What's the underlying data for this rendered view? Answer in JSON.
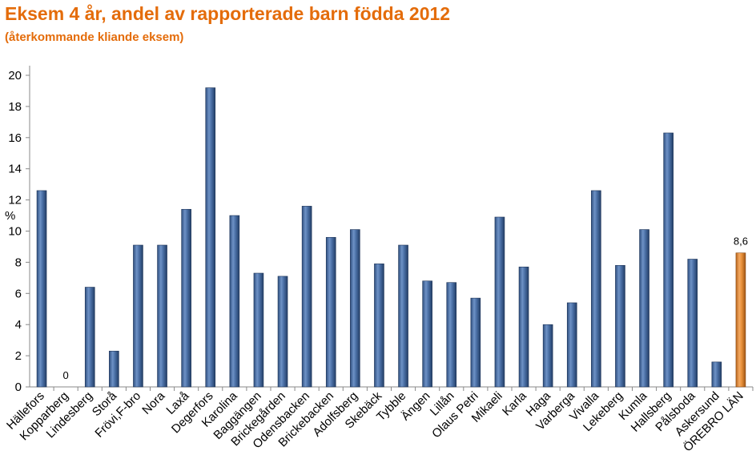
{
  "chart_data": {
    "type": "bar",
    "title": "Eksem 4 år, andel av rapporterade barn födda 2012",
    "subtitle": "(återkommande kliande eksem)",
    "xlabel": "",
    "ylabel": "%",
    "ylim": [
      0,
      20
    ],
    "yticks": [
      0,
      2,
      4,
      6,
      8,
      10,
      12,
      14,
      16,
      18,
      20
    ],
    "grid": false,
    "legend": "none",
    "categories": [
      "Hällefors",
      "Kopparberg",
      "Lindesberg",
      "Storå",
      "Frövi,F-bro",
      "Nora",
      "Laxå",
      "Degerfors",
      "Karolina",
      "Baggängen",
      "Brickegården",
      "Odensbacken",
      "Brickebacken",
      "Adolfsberg",
      "Skebäck",
      "Tybble",
      "Ängen",
      "Lillån",
      "Olaus Petri",
      "Mikaeli",
      "Karla",
      "Haga",
      "Varberga",
      "Vivalla",
      "Lekeberg",
      "Kumla",
      "Hallsberg",
      "Pålsboda",
      "Askersund",
      "ÖREBRO LÄN"
    ],
    "values": [
      12.6,
      0,
      6.4,
      2.3,
      9.1,
      9.1,
      11.4,
      19.2,
      11.0,
      7.3,
      7.1,
      11.6,
      9.6,
      10.1,
      7.9,
      9.1,
      6.8,
      6.7,
      5.7,
      10.9,
      7.7,
      4.0,
      5.4,
      12.6,
      7.8,
      10.1,
      16.3,
      8.2,
      1.6,
      8.6
    ],
    "data_labels": [
      {
        "category": "Kopparberg",
        "text": "0"
      },
      {
        "category": "ÖREBRO LÄN",
        "text": "8,6"
      }
    ],
    "colors": {
      "bar": "#4A6FA5",
      "highlight_bar": "#E8913A",
      "title": "#E46C0A"
    },
    "highlight_category": "ÖREBRO LÄN"
  }
}
